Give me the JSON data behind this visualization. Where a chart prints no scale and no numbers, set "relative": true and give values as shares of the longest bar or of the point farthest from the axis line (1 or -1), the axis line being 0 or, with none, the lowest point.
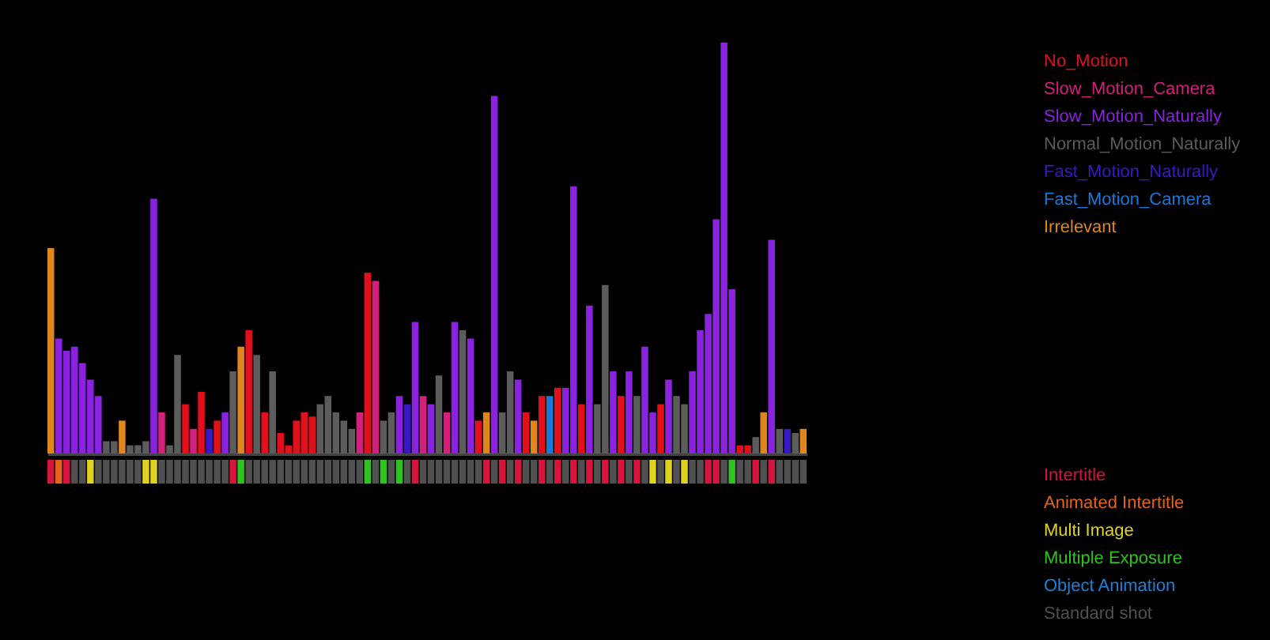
{
  "chart_data": [
    {
      "type": "bar",
      "relative": true,
      "stacked": true,
      "categories": [
        null,
        null,
        null,
        null,
        null,
        null,
        null,
        null,
        null,
        null,
        null,
        null,
        null,
        null,
        null,
        null,
        null,
        null,
        null,
        null,
        null,
        null,
        null,
        null,
        null,
        null,
        null,
        null,
        null,
        null,
        null,
        null,
        null,
        null,
        null,
        null,
        null,
        null,
        null,
        null,
        null,
        null,
        null,
        null,
        null,
        null,
        null,
        null,
        null,
        null,
        null,
        null,
        null,
        null,
        null,
        null,
        null,
        null,
        null,
        null,
        null,
        null,
        null,
        null,
        null,
        null,
        null,
        null,
        null,
        null,
        null,
        null,
        null,
        null,
        null,
        null,
        null,
        null,
        null,
        null,
        null,
        null,
        null,
        null,
        null,
        null,
        null,
        null,
        null,
        null,
        null,
        null,
        null,
        null,
        null,
        null
      ],
      "series": [
        {
          "name": "No_Motion",
          "color": "#e3101c",
          "values": [
            null,
            null,
            null,
            null,
            null,
            null,
            null,
            null,
            null,
            null,
            null,
            null,
            null,
            null,
            null,
            null,
            null,
            0.12,
            null,
            0.15,
            null,
            0.08,
            null,
            null,
            null,
            0.3,
            null,
            0.1,
            null,
            0.05,
            0.02,
            0.08,
            0.1,
            0.09,
            null,
            null,
            null,
            null,
            null,
            null,
            0.44,
            null,
            null,
            null,
            null,
            null,
            null,
            null,
            null,
            null,
            null,
            null,
            null,
            null,
            0.08,
            null,
            null,
            null,
            null,
            null,
            0.1,
            null,
            0.14,
            null,
            0.16,
            null,
            null,
            0.12,
            null,
            null,
            null,
            null,
            0.14,
            null,
            null,
            null,
            null,
            0.12,
            null,
            null,
            null,
            null,
            null,
            null,
            null,
            null,
            null,
            0.02,
            0.02,
            null,
            null,
            null,
            null,
            null,
            null,
            null
          ]
        },
        {
          "name": "Slow_Motion_Camera",
          "color": "#d41f7c",
          "values": [
            null,
            null,
            null,
            null,
            null,
            null,
            null,
            null,
            null,
            null,
            null,
            null,
            null,
            null,
            0.1,
            null,
            null,
            null,
            0.06,
            null,
            null,
            null,
            null,
            null,
            null,
            null,
            null,
            null,
            null,
            null,
            null,
            null,
            null,
            null,
            null,
            null,
            null,
            null,
            null,
            0.1,
            null,
            0.42,
            null,
            null,
            null,
            null,
            null,
            0.14,
            null,
            null,
            0.1,
            null,
            null,
            null,
            null,
            null,
            null,
            null,
            null,
            null,
            null,
            null,
            null,
            null,
            null,
            null,
            null,
            null,
            null,
            null,
            null,
            null,
            null,
            null,
            null,
            null,
            null,
            null,
            null,
            null,
            null,
            null,
            null,
            null,
            null,
            null,
            null,
            null,
            null,
            null,
            null,
            null,
            null,
            null,
            null,
            null
          ]
        },
        {
          "name": "Slow_Motion_Naturally",
          "color": "#8b22e0",
          "values": [
            null,
            0.28,
            0.25,
            0.26,
            0.22,
            0.18,
            0.14,
            null,
            null,
            null,
            null,
            null,
            null,
            0.62,
            null,
            null,
            null,
            null,
            null,
            null,
            null,
            null,
            0.1,
            null,
            null,
            null,
            null,
            null,
            null,
            null,
            null,
            null,
            null,
            null,
            null,
            null,
            null,
            null,
            null,
            null,
            null,
            null,
            null,
            null,
            0.14,
            null,
            0.32,
            null,
            0.12,
            null,
            null,
            0.32,
            null,
            0.28,
            null,
            null,
            0.87,
            null,
            null,
            0.18,
            null,
            null,
            null,
            null,
            null,
            0.16,
            0.65,
            null,
            0.36,
            null,
            null,
            0.2,
            null,
            0.2,
            null,
            0.26,
            0.1,
            null,
            0.18,
            null,
            null,
            0.2,
            0.3,
            0.34,
            0.57,
            1,
            0.4,
            null,
            null,
            null,
            null,
            0.52,
            null,
            null,
            null,
            null
          ]
        },
        {
          "name": "Normal_Motion_Naturally",
          "color": "#5c5c5c",
          "values": [
            null,
            null,
            null,
            null,
            null,
            null,
            null,
            0.03,
            0.03,
            null,
            0.02,
            0.02,
            0.03,
            null,
            null,
            0.02,
            0.24,
            null,
            null,
            null,
            null,
            null,
            null,
            0.2,
            null,
            null,
            0.24,
            null,
            0.2,
            null,
            null,
            null,
            null,
            null,
            0.12,
            0.14,
            0.1,
            0.08,
            0.06,
            null,
            null,
            null,
            0.08,
            0.1,
            null,
            null,
            null,
            null,
            null,
            0.19,
            null,
            null,
            0.3,
            null,
            null,
            null,
            null,
            0.1,
            0.2,
            null,
            null,
            null,
            null,
            null,
            null,
            null,
            null,
            null,
            null,
            0.12,
            0.41,
            null,
            null,
            null,
            0.14,
            null,
            null,
            null,
            null,
            0.14,
            0.12,
            null,
            null,
            null,
            null,
            null,
            null,
            null,
            null,
            0.04,
            null,
            null,
            0.06,
            null,
            0.05,
            null
          ]
        },
        {
          "name": "Fast_Motion_Naturally",
          "color": "#3a18c8",
          "values": [
            null,
            null,
            null,
            null,
            null,
            null,
            null,
            null,
            null,
            null,
            null,
            null,
            null,
            null,
            null,
            null,
            null,
            null,
            null,
            null,
            0.06,
            null,
            null,
            null,
            null,
            null,
            null,
            null,
            null,
            null,
            null,
            null,
            null,
            null,
            null,
            null,
            null,
            null,
            null,
            null,
            null,
            null,
            null,
            null,
            null,
            0.12,
            null,
            null,
            null,
            null,
            null,
            null,
            null,
            null,
            null,
            null,
            null,
            null,
            null,
            null,
            null,
            null,
            null,
            null,
            null,
            null,
            null,
            null,
            null,
            null,
            null,
            null,
            null,
            null,
            null,
            null,
            null,
            null,
            null,
            null,
            null,
            null,
            null,
            null,
            null,
            null,
            null,
            null,
            null,
            null,
            null,
            null,
            null,
            0.06,
            null,
            null
          ]
        },
        {
          "name": "Fast_Motion_Camera",
          "color": "#1e78d6",
          "values": [
            null,
            null,
            null,
            null,
            null,
            null,
            null,
            null,
            null,
            null,
            null,
            null,
            null,
            null,
            null,
            null,
            null,
            null,
            null,
            null,
            null,
            null,
            null,
            null,
            null,
            null,
            null,
            null,
            null,
            null,
            null,
            null,
            null,
            null,
            null,
            null,
            null,
            null,
            null,
            null,
            null,
            null,
            null,
            null,
            null,
            null,
            null,
            null,
            null,
            null,
            null,
            null,
            null,
            null,
            null,
            null,
            null,
            null,
            null,
            null,
            null,
            null,
            null,
            0.14,
            null,
            null,
            null,
            null,
            null,
            null,
            null,
            null,
            null,
            null,
            null,
            null,
            null,
            null,
            null,
            null,
            null,
            null,
            null,
            null,
            null,
            null,
            null,
            null,
            null,
            null,
            null,
            null,
            null,
            null,
            null,
            null
          ]
        },
        {
          "name": "Irrelevant",
          "color": "#e0861e",
          "values": [
            0.5,
            null,
            null,
            null,
            null,
            null,
            null,
            null,
            null,
            0.08,
            null,
            null,
            null,
            null,
            null,
            null,
            null,
            null,
            null,
            null,
            null,
            null,
            null,
            null,
            0.26,
            null,
            null,
            null,
            null,
            null,
            null,
            null,
            null,
            null,
            null,
            null,
            null,
            null,
            null,
            null,
            null,
            null,
            null,
            null,
            null,
            null,
            null,
            null,
            null,
            null,
            null,
            null,
            null,
            null,
            null,
            0.1,
            null,
            null,
            null,
            null,
            null,
            0.08,
            null,
            null,
            null,
            null,
            null,
            null,
            null,
            null,
            null,
            null,
            null,
            null,
            null,
            null,
            null,
            null,
            null,
            null,
            null,
            null,
            null,
            null,
            null,
            null,
            null,
            null,
            null,
            null,
            0.1,
            null,
            null,
            null,
            null,
            0.06
          ]
        }
      ]
    },
    {
      "type": "bar",
      "relative": true,
      "stacked": true,
      "categories": [
        null,
        null,
        null,
        null,
        null,
        null,
        null,
        null,
        null,
        null,
        null,
        null,
        null,
        null,
        null,
        null,
        null,
        null,
        null,
        null,
        null,
        null,
        null,
        null,
        null,
        null,
        null,
        null,
        null,
        null,
        null,
        null,
        null,
        null,
        null,
        null,
        null,
        null,
        null,
        null,
        null,
        null,
        null,
        null,
        null,
        null,
        null,
        null,
        null,
        null,
        null,
        null,
        null,
        null,
        null,
        null,
        null,
        null,
        null,
        null,
        null,
        null,
        null,
        null,
        null,
        null,
        null,
        null,
        null,
        null,
        null,
        null,
        null,
        null,
        null,
        null,
        null,
        null,
        null,
        null,
        null,
        null,
        null,
        null,
        null,
        null,
        null,
        null,
        null,
        null,
        null,
        null,
        null,
        null,
        null,
        null
      ],
      "series": [
        {
          "name": "Intertitle",
          "color": "#d6143c",
          "values": [
            1,
            null,
            1,
            null,
            null,
            null,
            null,
            null,
            null,
            null,
            null,
            null,
            null,
            null,
            null,
            null,
            null,
            null,
            null,
            null,
            null,
            null,
            null,
            1,
            null,
            null,
            null,
            null,
            null,
            null,
            null,
            null,
            null,
            null,
            null,
            null,
            null,
            null,
            null,
            null,
            null,
            null,
            null,
            null,
            null,
            null,
            1,
            null,
            null,
            null,
            null,
            null,
            null,
            null,
            null,
            1,
            null,
            1,
            null,
            1,
            null,
            null,
            1,
            null,
            1,
            null,
            1,
            null,
            1,
            null,
            1,
            null,
            1,
            null,
            1,
            null,
            null,
            null,
            null,
            null,
            null,
            null,
            null,
            1,
            1,
            null,
            null,
            null,
            null,
            1,
            null,
            1,
            null,
            null,
            null,
            null
          ]
        },
        {
          "name": "Animated Intertitle",
          "color": "#e2641c",
          "values": [
            null,
            1,
            null,
            null,
            null,
            null,
            null,
            null,
            null,
            null,
            null,
            null,
            null,
            null,
            null,
            null,
            null,
            null,
            null,
            null,
            null,
            null,
            null,
            null,
            null,
            null,
            null,
            null,
            null,
            null,
            null,
            null,
            null,
            null,
            null,
            null,
            null,
            null,
            null,
            null,
            null,
            null,
            null,
            null,
            null,
            null,
            null,
            null,
            null,
            null,
            null,
            null,
            null,
            null,
            null,
            null,
            null,
            null,
            null,
            null,
            null,
            null,
            null,
            null,
            null,
            null,
            null,
            null,
            null,
            null,
            null,
            null,
            null,
            null,
            null,
            null,
            null,
            null,
            null,
            null,
            null,
            null,
            null,
            null,
            null,
            null,
            null,
            null,
            null,
            null,
            null,
            null,
            null,
            null,
            null,
            null
          ]
        },
        {
          "name": "Multi Image",
          "color": "#e0d21e",
          "values": [
            null,
            null,
            null,
            null,
            null,
            1,
            null,
            null,
            null,
            null,
            null,
            null,
            1,
            1,
            null,
            null,
            null,
            null,
            null,
            null,
            null,
            null,
            null,
            null,
            null,
            null,
            null,
            null,
            null,
            null,
            null,
            null,
            null,
            null,
            null,
            null,
            null,
            null,
            null,
            null,
            null,
            null,
            null,
            null,
            null,
            null,
            null,
            null,
            null,
            null,
            null,
            null,
            null,
            null,
            null,
            null,
            null,
            null,
            null,
            null,
            null,
            null,
            null,
            null,
            null,
            null,
            null,
            null,
            null,
            null,
            null,
            null,
            null,
            null,
            null,
            null,
            1,
            null,
            1,
            null,
            1,
            null,
            null,
            null,
            null,
            null,
            null,
            null,
            null,
            null,
            null,
            null,
            null,
            null,
            null,
            null
          ]
        },
        {
          "name": "Multiple Exposure",
          "color": "#2ec41e",
          "values": [
            null,
            null,
            null,
            null,
            null,
            null,
            null,
            null,
            null,
            null,
            null,
            null,
            null,
            null,
            null,
            null,
            null,
            null,
            null,
            null,
            null,
            null,
            null,
            null,
            1,
            null,
            null,
            null,
            null,
            null,
            null,
            null,
            null,
            null,
            null,
            null,
            null,
            null,
            null,
            null,
            1,
            null,
            1,
            null,
            1,
            null,
            null,
            null,
            null,
            null,
            null,
            null,
            null,
            null,
            null,
            null,
            null,
            null,
            null,
            null,
            null,
            null,
            null,
            null,
            null,
            null,
            null,
            null,
            null,
            null,
            null,
            null,
            null,
            null,
            null,
            null,
            null,
            null,
            null,
            null,
            null,
            null,
            null,
            null,
            null,
            null,
            1,
            null,
            null,
            null,
            null,
            null,
            null,
            null,
            null,
            null
          ]
        },
        {
          "name": "Object Animation",
          "color": "#1e80d8",
          "values": [
            null,
            null,
            null,
            null,
            null,
            null,
            null,
            null,
            null,
            null,
            null,
            null,
            null,
            null,
            null,
            null,
            null,
            null,
            null,
            null,
            null,
            null,
            null,
            null,
            null,
            null,
            null,
            null,
            null,
            null,
            null,
            null,
            null,
            null,
            null,
            null,
            null,
            null,
            null,
            null,
            null,
            null,
            null,
            null,
            null,
            null,
            null,
            null,
            null,
            null,
            null,
            null,
            null,
            null,
            null,
            null,
            null,
            null,
            null,
            null,
            null,
            null,
            null,
            null,
            null,
            null,
            null,
            null,
            null,
            null,
            null,
            null,
            null,
            null,
            null,
            null,
            null,
            null,
            null,
            null,
            null,
            null,
            null,
            null,
            null,
            null,
            null,
            null,
            null,
            null,
            null,
            null,
            null,
            null,
            null,
            null
          ]
        },
        {
          "name": "Standard shot",
          "color": "#505050",
          "values": [
            null,
            null,
            null,
            1,
            1,
            null,
            1,
            1,
            1,
            1,
            1,
            1,
            null,
            null,
            1,
            1,
            1,
            1,
            1,
            1,
            1,
            1,
            1,
            null,
            null,
            1,
            1,
            1,
            1,
            1,
            1,
            1,
            1,
            1,
            1,
            1,
            1,
            1,
            1,
            1,
            null,
            1,
            null,
            1,
            null,
            1,
            null,
            1,
            1,
            1,
            1,
            1,
            1,
            1,
            1,
            null,
            1,
            null,
            1,
            null,
            1,
            1,
            null,
            1,
            null,
            1,
            null,
            1,
            null,
            1,
            null,
            1,
            null,
            1,
            null,
            1,
            null,
            1,
            null,
            1,
            null,
            1,
            1,
            null,
            null,
            1,
            null,
            1,
            1,
            null,
            1,
            null,
            1,
            1,
            1,
            1
          ]
        }
      ]
    }
  ]
}
